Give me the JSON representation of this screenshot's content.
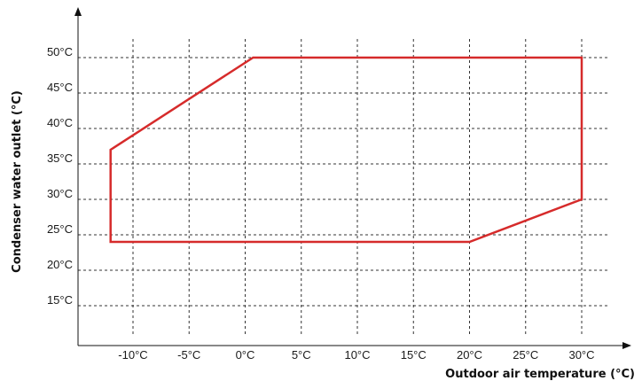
{
  "chart_data": {
    "type": "line",
    "title": "",
    "xlabel": "Outdoor air temperature (°C)",
    "ylabel": "Condenser water outlet (°C)",
    "x_ticks": [
      -10,
      -5,
      0,
      5,
      10,
      15,
      20,
      25,
      30
    ],
    "x_tick_labels": [
      "-10°C",
      "-5°C",
      "0°C",
      "5°C",
      "10°C",
      "15°C",
      "20°C",
      "25°C",
      "30°C"
    ],
    "y_ticks": [
      15,
      20,
      25,
      30,
      35,
      40,
      45,
      50
    ],
    "y_tick_labels": [
      "15°C",
      "20°C",
      "25°C",
      "30°C",
      "35°C",
      "40°C",
      "45°C",
      "50°C"
    ],
    "xlim": [
      -15,
      32
    ],
    "ylim": [
      10,
      52
    ],
    "grid": true,
    "series": [
      {
        "color": "#d62b2b",
        "closed": true,
        "x": [
          -12,
          -12,
          20,
          30,
          30,
          0.7
        ],
        "y": [
          24,
          37,
          24,
          30,
          50,
          50
        ],
        "order_note": ""
      }
    ]
  }
}
